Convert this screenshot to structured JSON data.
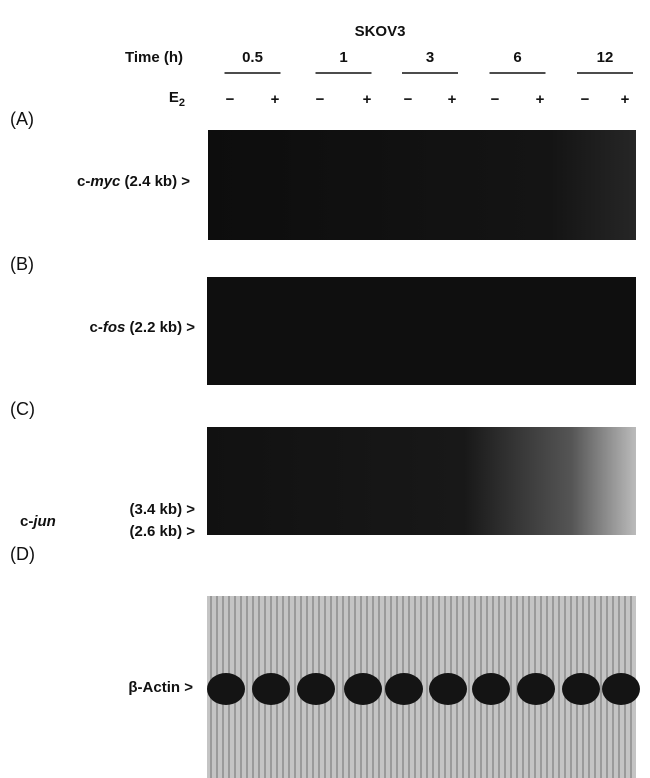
{
  "header": {
    "cell_line": "SKOV3",
    "time_label": "Time (h)",
    "timepoints": [
      "0.5",
      "1",
      "3",
      "6",
      "12"
    ],
    "treatment_label": "E",
    "treatment_subscript": "2",
    "signs": [
      "−",
      "+",
      "−",
      "+",
      "−",
      "+",
      "−",
      "+",
      "−",
      "+"
    ]
  },
  "panels": [
    {
      "label": "(A)",
      "gene_prefix": "c-",
      "gene": "myc",
      "bands": [
        " (2.4 kb) >"
      ]
    },
    {
      "label": "(B)",
      "gene_prefix": "c-",
      "gene": "fos",
      "bands": [
        " (2.2 kb) >"
      ]
    },
    {
      "label": "(C)",
      "gene_prefix": "c-",
      "gene": "jun",
      "bands": [
        "(3.4 kb) >",
        "(2.6 kb) >"
      ]
    },
    {
      "label": "(D)",
      "gene_prefix": "",
      "gene": "β-Actin",
      "bands": [
        " >"
      ]
    }
  ]
}
